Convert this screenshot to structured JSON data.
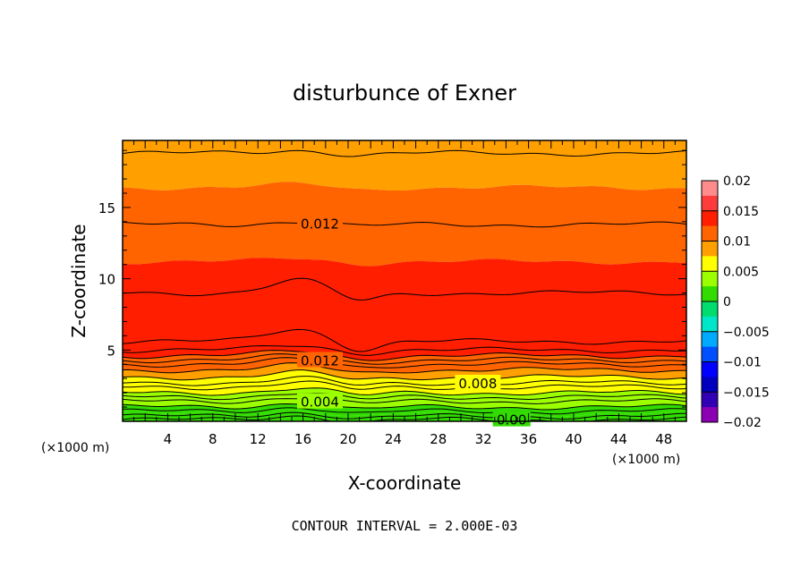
{
  "chart_data": {
    "type": "heatmap",
    "title": "disturbunce of Exner",
    "xlabel": "X-coordinate",
    "ylabel": "Z-coordinate",
    "x_unit_label": "(×1000 m)",
    "xlim": [
      0,
      50
    ],
    "ylim": [
      0,
      19.7
    ],
    "x_ticks": [
      4,
      8,
      12,
      16,
      20,
      24,
      28,
      32,
      36,
      40,
      44,
      48
    ],
    "y_ticks": [
      5,
      10,
      15
    ],
    "colorbar": {
      "min": -0.02,
      "max": 0.02,
      "tick_values": [
        0.02,
        0.015,
        0.01,
        0.005,
        0,
        -0.005,
        -0.01,
        -0.015,
        -0.02
      ],
      "tick_labels": [
        "0.02",
        "0.015",
        "0.01",
        "0.005",
        "0",
        "−0.005",
        "−0.01",
        "−0.015",
        "−0.02"
      ],
      "bands": [
        {
          "from": 0.0175,
          "to": 0.02,
          "color": "#ff8c8c"
        },
        {
          "from": 0.015,
          "to": 0.0175,
          "color": "#ff3c3c"
        },
        {
          "from": 0.0125,
          "to": 0.015,
          "color": "#ff1e00"
        },
        {
          "from": 0.01,
          "to": 0.0125,
          "color": "#ff6400"
        },
        {
          "from": 0.0075,
          "to": 0.01,
          "color": "#ffa000"
        },
        {
          "from": 0.005,
          "to": 0.0075,
          "color": "#ffff00"
        },
        {
          "from": 0.0025,
          "to": 0.005,
          "color": "#9bff00"
        },
        {
          "from": 0,
          "to": 0.0025,
          "color": "#32dc00"
        },
        {
          "from": -0.0025,
          "to": 0,
          "color": "#00dc6e"
        },
        {
          "from": -0.005,
          "to": -0.0025,
          "color": "#00e6c8"
        },
        {
          "from": -0.0075,
          "to": -0.005,
          "color": "#00aaff"
        },
        {
          "from": -0.01,
          "to": -0.0075,
          "color": "#0050ff"
        },
        {
          "from": -0.0125,
          "to": -0.01,
          "color": "#0000ff"
        },
        {
          "from": -0.015,
          "to": -0.0125,
          "color": "#0000be"
        },
        {
          "from": -0.0175,
          "to": -0.015,
          "color": "#3200b4"
        },
        {
          "from": -0.02,
          "to": -0.0175,
          "color": "#8c00b4"
        }
      ]
    },
    "contour_interval": 0.002,
    "contour_labels": [
      {
        "text": "0.012",
        "x": 17.5,
        "z": 13.9
      },
      {
        "text": "0.012",
        "x": 17.5,
        "z": 4.3
      },
      {
        "text": "0.008",
        "x": 31.5,
        "z": 2.7
      },
      {
        "text": "0.004",
        "x": 17.5,
        "z": 1.4
      },
      {
        "text": "0.00",
        "x": 34.5,
        "z": 0.15
      }
    ],
    "field_bands": [
      {
        "z0": 18.8,
        "z1": 19.7,
        "value": 0.009
      },
      {
        "z0": 16.4,
        "z1": 18.8,
        "value": 0.009
      },
      {
        "z0": 13.8,
        "z1": 16.4,
        "value": 0.011
      },
      {
        "z0": 11.2,
        "z1": 13.8,
        "value": 0.012
      },
      {
        "z0": 9.0,
        "z1": 11.2,
        "value": 0.0135
      },
      {
        "z0": 5.6,
        "z1": 9.0,
        "value": 0.0145
      },
      {
        "z0": 4.6,
        "z1": 5.6,
        "value": 0.0135
      },
      {
        "z0": 4.0,
        "z1": 4.6,
        "value": 0.012
      },
      {
        "z0": 3.6,
        "z1": 4.0,
        "value": 0.011
      },
      {
        "z0": 3.1,
        "z1": 3.6,
        "value": 0.009
      },
      {
        "z0": 2.4,
        "z1": 3.1,
        "value": 0.0065
      },
      {
        "z0": 2.0,
        "z1": 2.4,
        "value": 0.0055
      },
      {
        "z0": 1.5,
        "z1": 2.0,
        "value": 0.004
      },
      {
        "z0": 1.0,
        "z1": 1.5,
        "value": 0.0035
      },
      {
        "z0": 0.5,
        "z1": 1.0,
        "value": 0.002
      },
      {
        "z0": 0.0,
        "z1": 0.5,
        "value": 0.001
      }
    ],
    "contour_levels_z": [
      18.8,
      13.8,
      9.0,
      5.6,
      5.0,
      4.6,
      4.3,
      4.0,
      3.6,
      3.1,
      2.7,
      2.4,
      2.0,
      1.7,
      1.4,
      1.0,
      0.7,
      0.35,
      0.1
    ],
    "ridge": {
      "center_x": 15.5,
      "height": 0.9,
      "width": 3.5
    },
    "trough": {
      "center_x": 21.0,
      "height": -0.6,
      "width": 2.5
    }
  },
  "annotation": "CONTOUR INTERVAL = 2.000E-03"
}
